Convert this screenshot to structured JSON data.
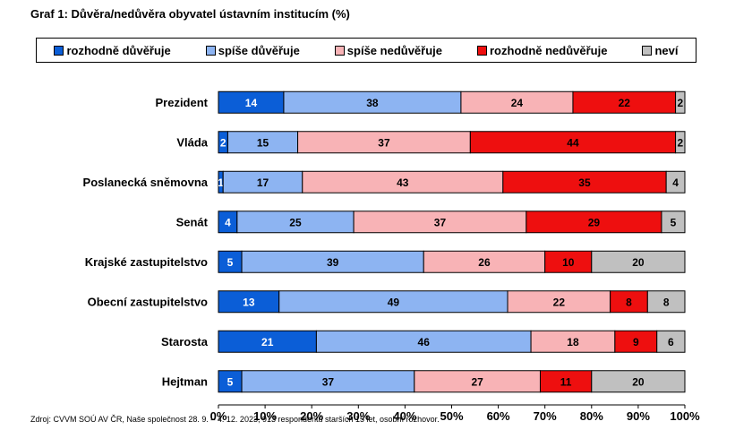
{
  "chart_data": {
    "type": "bar",
    "orientation": "horizontal",
    "stacked": true,
    "title": "Graf 1: Důvěra/nedůvěra obyvatel ústavním institucím (%)",
    "categories": [
      "Prezident",
      "Vláda",
      "Poslanecká sněmovna",
      "Senát",
      "Krajské zastupitelstvo",
      "Obecní zastupitelstvo",
      "Starosta",
      "Hejtman"
    ],
    "series": [
      {
        "name": "rozhodně důvěřuje",
        "color": "#0b5ed7",
        "values": [
          14,
          2,
          1,
          4,
          5,
          13,
          21,
          5
        ]
      },
      {
        "name": "spíše důvěřuje",
        "color": "#8db4f2",
        "values": [
          38,
          15,
          17,
          25,
          39,
          49,
          46,
          37
        ]
      },
      {
        "name": "spíše nedůvěřuje",
        "color": "#f8b3b6",
        "values": [
          24,
          37,
          43,
          37,
          26,
          22,
          18,
          27
        ]
      },
      {
        "name": "rozhodně nedůvěřuje",
        "color": "#ee0f0f",
        "values": [
          22,
          44,
          35,
          29,
          10,
          8,
          9,
          11
        ]
      },
      {
        "name": "neví",
        "color": "#c0c0c0",
        "values": [
          2,
          2,
          4,
          5,
          20,
          8,
          6,
          20
        ]
      }
    ],
    "xlim": [
      0,
      100
    ],
    "xticks": [
      "0%",
      "10%",
      "20%",
      "30%",
      "40%",
      "50%",
      "60%",
      "70%",
      "80%",
      "90%",
      "100%"
    ],
    "legend_position": "top",
    "grid": false
  },
  "source_note": "Zdroj: CVVM SOÚ AV ČR, Naše společnost 28. 9. – 4. 12. 2023, 913 respondentů starších 15 let, osobní rozhovor."
}
